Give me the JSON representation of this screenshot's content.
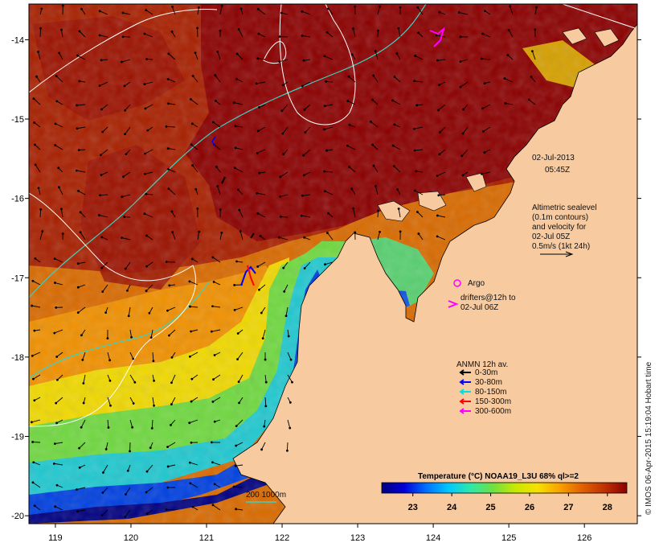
{
  "chart_data": {
    "type": "heatmap",
    "x_ticks": [
      119,
      120,
      121,
      122,
      123,
      124,
      125,
      126
    ],
    "y_ticks": [
      -14,
      -15,
      -16,
      -17,
      -18,
      -19,
      -20
    ],
    "xlim": [
      118.65,
      126.7
    ],
    "ylim": [
      -20.1,
      -13.55
    ],
    "colorbar": {
      "title": "Temperature (°C) NOAA19_L3U 68% ql>=2",
      "ticks": [
        23,
        24,
        25,
        26,
        27,
        28
      ],
      "range": [
        22.2,
        28.5
      ],
      "colors": [
        "#000080",
        "#0000d8",
        "#0070ff",
        "#00c8ff",
        "#30e8a8",
        "#70e040",
        "#c8e800",
        "#f8e000",
        "#f8a000",
        "#e06000",
        "#c03000",
        "#8b0000"
      ]
    }
  },
  "annotations": {
    "date": "02-Jul-2013",
    "time": "05:45Z",
    "altimetry": [
      "Altimetric sealevel",
      "(0.1m contours)",
      "and velocity for",
      "02-Jul 05Z",
      "0.5m/s (1kt 24h)"
    ],
    "argo_label": "Argo",
    "drifters": [
      "drifters@12h to",
      "02-Jul 06Z"
    ],
    "anmn_title": "ANMN 12h av.",
    "anmn_legend": [
      {
        "label": "0-30m",
        "color": "#000000"
      },
      {
        "label": "30-80m",
        "color": "#0000ff"
      },
      {
        "label": "80-150m",
        "color": "#00e0e0"
      },
      {
        "label": "150-300m",
        "color": "#ff0000"
      },
      {
        "label": "300-600m",
        "color": "#ff00ff"
      }
    ],
    "scale_label": "200  1000m",
    "credit": "© IMOS 06-Apr-2015 15:19:04 Hobart time"
  },
  "colors": {
    "land": "#f7caa0",
    "hot": "#8b0000",
    "isobath_200": "#40d0c0",
    "isobath_1000": "#ffffff",
    "argo": "#ff00ff"
  }
}
